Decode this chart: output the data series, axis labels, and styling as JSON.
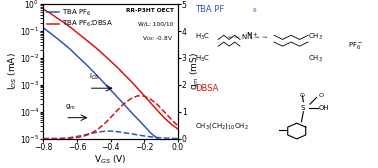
{
  "xlabel": "V$_{GS}$ (V)",
  "ylabel_left": "I$_{DS}$ (mA)",
  "ylabel_right": "g$_{m}$ (mS)",
  "xlim": [
    -0.8,
    0.0
  ],
  "ylim_log": [
    1e-05,
    1
  ],
  "ylim_right": [
    0,
    5
  ],
  "blue_color": "#3355BB",
  "red_color": "#DD1111",
  "tba_color": "#3355BB",
  "dbsa_color": "#DD1111",
  "IDS_blue_x": [
    -0.8,
    -0.76,
    -0.72,
    -0.68,
    -0.64,
    -0.6,
    -0.56,
    -0.52,
    -0.48,
    -0.44,
    -0.4,
    -0.36,
    -0.32,
    -0.28,
    -0.24,
    -0.2,
    -0.16,
    -0.12,
    -0.08,
    -0.04,
    0.0
  ],
  "IDS_blue_y": [
    0.13,
    0.085,
    0.054,
    0.034,
    0.021,
    0.012,
    0.007,
    0.004,
    0.0022,
    0.0012,
    0.00065,
    0.00035,
    0.00019,
    0.0001,
    5.5e-05,
    3e-05,
    1.6e-05,
    1e-05,
    7.5e-06,
    6.5e-06,
    5.5e-06
  ],
  "IDS_red_x": [
    -0.8,
    -0.76,
    -0.72,
    -0.68,
    -0.64,
    -0.6,
    -0.56,
    -0.52,
    -0.48,
    -0.44,
    -0.4,
    -0.36,
    -0.32,
    -0.28,
    -0.24,
    -0.2,
    -0.16,
    -0.12,
    -0.08,
    -0.04,
    0.0
  ],
  "IDS_red_y": [
    0.65,
    0.46,
    0.31,
    0.21,
    0.14,
    0.088,
    0.056,
    0.035,
    0.022,
    0.013,
    0.0077,
    0.0045,
    0.0025,
    0.0014,
    0.00075,
    0.0004,
    0.00021,
    0.00011,
    6e-05,
    3.5e-05,
    2.3e-05
  ],
  "gm_blue_y": [
    0.0,
    0.0,
    0.001,
    0.01,
    0.04,
    0.08,
    0.13,
    0.19,
    0.24,
    0.27,
    0.28,
    0.26,
    0.22,
    0.18,
    0.14,
    0.1,
    0.065,
    0.04,
    0.022,
    0.011,
    0.004
  ],
  "gm_red_y": [
    0.0,
    0.0,
    0.0,
    0.003,
    0.015,
    0.04,
    0.09,
    0.18,
    0.33,
    0.53,
    0.78,
    1.05,
    1.3,
    1.48,
    1.59,
    1.58,
    1.46,
    1.26,
    1.0,
    0.73,
    0.48
  ]
}
